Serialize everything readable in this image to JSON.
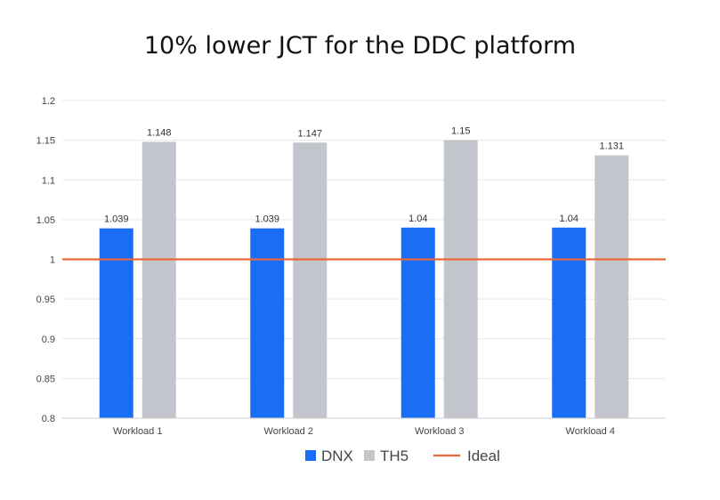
{
  "chart_data": {
    "type": "bar",
    "title": "10% lower JCT for the DDC platform",
    "categories": [
      "Workload 1",
      "Workload 2",
      "Workload 3",
      "Workload 4"
    ],
    "series": [
      {
        "name": "DNX",
        "values": [
          1.039,
          1.039,
          1.04,
          1.04
        ],
        "labels": [
          "1.039",
          "1.039",
          "1.04",
          "1.04"
        ],
        "color": "#1a6ef5"
      },
      {
        "name": "TH5",
        "values": [
          1.148,
          1.147,
          1.15,
          1.131
        ],
        "labels": [
          "1.148",
          "1.147",
          "1.15",
          "1.131"
        ],
        "color": "#c3c5cc"
      }
    ],
    "reference_line": {
      "name": "Ideal",
      "value": 1,
      "color": "#e8683a"
    },
    "ylim": [
      0.8,
      1.2
    ],
    "yticks": [
      {
        "value": 0.8,
        "label": "0.8"
      },
      {
        "value": 0.85,
        "label": "0.85"
      },
      {
        "value": 0.9,
        "label": "0.9"
      },
      {
        "value": 0.95,
        "label": "0.95"
      },
      {
        "value": 1,
        "label": "1"
      },
      {
        "value": 1.05,
        "label": "1.05"
      },
      {
        "value": 1.1,
        "label": "1.1"
      },
      {
        "value": 1.15,
        "label": "1.15"
      },
      {
        "value": 1.2,
        "label": "1.2"
      }
    ],
    "xlabel": "",
    "ylabel": "",
    "grid": true,
    "legend_position": "bottom-center"
  }
}
